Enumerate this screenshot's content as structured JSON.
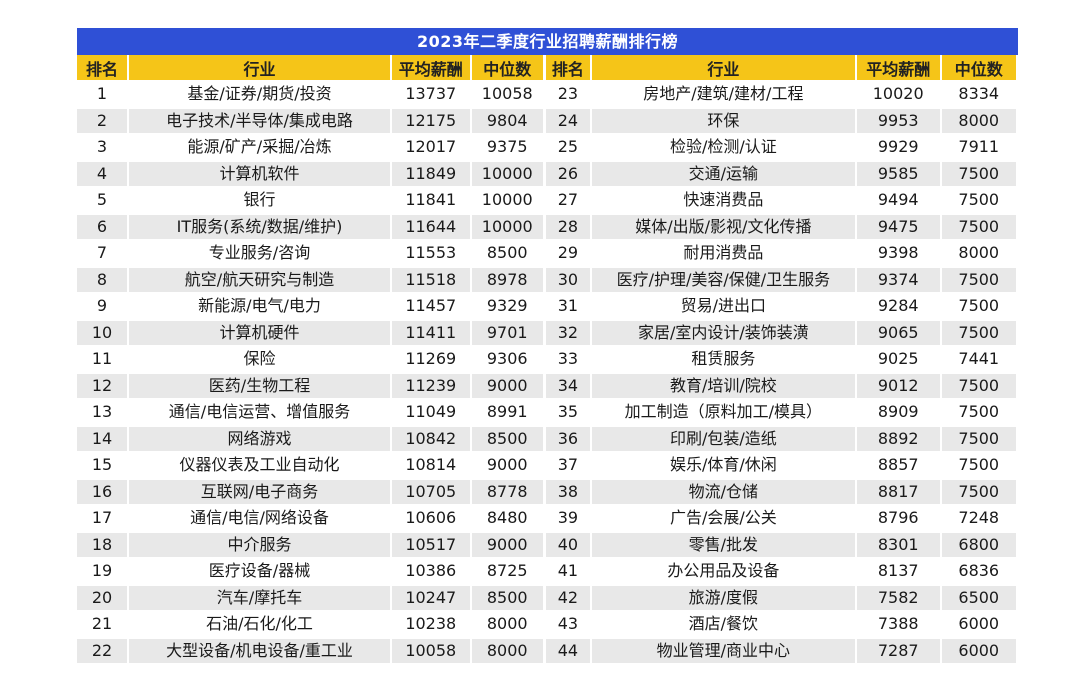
{
  "title": "2023年二季度行业招聘薪酬排行榜",
  "headers": {
    "rank": "排名",
    "industry": "行业",
    "avg": "平均薪酬",
    "median": "中位数"
  },
  "rows": [
    {
      "l": {
        "rank": "1",
        "industry": "基金/证券/期货/投资",
        "avg": "13737",
        "median": "10058"
      },
      "r": {
        "rank": "23",
        "industry": "房地产/建筑/建材/工程",
        "avg": "10020",
        "median": "8334"
      }
    },
    {
      "l": {
        "rank": "2",
        "industry": "电子技术/半导体/集成电路",
        "avg": "12175",
        "median": "9804"
      },
      "r": {
        "rank": "24",
        "industry": "环保",
        "avg": "9953",
        "median": "8000"
      }
    },
    {
      "l": {
        "rank": "3",
        "industry": "能源/矿产/采掘/冶炼",
        "avg": "12017",
        "median": "9375"
      },
      "r": {
        "rank": "25",
        "industry": "检验/检测/认证",
        "avg": "9929",
        "median": "7911"
      }
    },
    {
      "l": {
        "rank": "4",
        "industry": "计算机软件",
        "avg": "11849",
        "median": "10000"
      },
      "r": {
        "rank": "26",
        "industry": "交通/运输",
        "avg": "9585",
        "median": "7500"
      }
    },
    {
      "l": {
        "rank": "5",
        "industry": "银行",
        "avg": "11841",
        "median": "10000"
      },
      "r": {
        "rank": "27",
        "industry": "快速消费品",
        "avg": "9494",
        "median": "7500"
      }
    },
    {
      "l": {
        "rank": "6",
        "industry": "IT服务(系统/数据/维护)",
        "avg": "11644",
        "median": "10000"
      },
      "r": {
        "rank": "28",
        "industry": "媒体/出版/影视/文化传播",
        "avg": "9475",
        "median": "7500"
      }
    },
    {
      "l": {
        "rank": "7",
        "industry": "专业服务/咨询",
        "avg": "11553",
        "median": "8500"
      },
      "r": {
        "rank": "29",
        "industry": "耐用消费品",
        "avg": "9398",
        "median": "8000"
      }
    },
    {
      "l": {
        "rank": "8",
        "industry": "航空/航天研究与制造",
        "avg": "11518",
        "median": "8978"
      },
      "r": {
        "rank": "30",
        "industry": "医疗/护理/美容/保健/卫生服务",
        "avg": "9374",
        "median": "7500"
      }
    },
    {
      "l": {
        "rank": "9",
        "industry": "新能源/电气/电力",
        "avg": "11457",
        "median": "9329"
      },
      "r": {
        "rank": "31",
        "industry": "贸易/进出口",
        "avg": "9284",
        "median": "7500"
      }
    },
    {
      "l": {
        "rank": "10",
        "industry": "计算机硬件",
        "avg": "11411",
        "median": "9701"
      },
      "r": {
        "rank": "32",
        "industry": "家居/室内设计/装饰装潢",
        "avg": "9065",
        "median": "7500"
      }
    },
    {
      "l": {
        "rank": "11",
        "industry": "保险",
        "avg": "11269",
        "median": "9306"
      },
      "r": {
        "rank": "33",
        "industry": "租赁服务",
        "avg": "9025",
        "median": "7441"
      }
    },
    {
      "l": {
        "rank": "12",
        "industry": "医药/生物工程",
        "avg": "11239",
        "median": "9000"
      },
      "r": {
        "rank": "34",
        "industry": "教育/培训/院校",
        "avg": "9012",
        "median": "7500"
      }
    },
    {
      "l": {
        "rank": "13",
        "industry": "通信/电信运营、增值服务",
        "avg": "11049",
        "median": "8991"
      },
      "r": {
        "rank": "35",
        "industry": "加工制造（原料加工/模具）",
        "avg": "8909",
        "median": "7500"
      }
    },
    {
      "l": {
        "rank": "14",
        "industry": "网络游戏",
        "avg": "10842",
        "median": "8500"
      },
      "r": {
        "rank": "36",
        "industry": "印刷/包装/造纸",
        "avg": "8892",
        "median": "7500"
      }
    },
    {
      "l": {
        "rank": "15",
        "industry": "仪器仪表及工业自动化",
        "avg": "10814",
        "median": "9000"
      },
      "r": {
        "rank": "37",
        "industry": "娱乐/体育/休闲",
        "avg": "8857",
        "median": "7500"
      }
    },
    {
      "l": {
        "rank": "16",
        "industry": "互联网/电子商务",
        "avg": "10705",
        "median": "8778"
      },
      "r": {
        "rank": "38",
        "industry": "物流/仓储",
        "avg": "8817",
        "median": "7500"
      }
    },
    {
      "l": {
        "rank": "17",
        "industry": "通信/电信/网络设备",
        "avg": "10606",
        "median": "8480"
      },
      "r": {
        "rank": "39",
        "industry": "广告/会展/公关",
        "avg": "8796",
        "median": "7248"
      }
    },
    {
      "l": {
        "rank": "18",
        "industry": "中介服务",
        "avg": "10517",
        "median": "9000"
      },
      "r": {
        "rank": "40",
        "industry": "零售/批发",
        "avg": "8301",
        "median": "6800"
      }
    },
    {
      "l": {
        "rank": "19",
        "industry": "医疗设备/器械",
        "avg": "10386",
        "median": "8725"
      },
      "r": {
        "rank": "41",
        "industry": "办公用品及设备",
        "avg": "8137",
        "median": "6836"
      }
    },
    {
      "l": {
        "rank": "20",
        "industry": "汽车/摩托车",
        "avg": "10247",
        "median": "8500"
      },
      "r": {
        "rank": "42",
        "industry": "旅游/度假",
        "avg": "7582",
        "median": "6500"
      }
    },
    {
      "l": {
        "rank": "21",
        "industry": "石油/石化/化工",
        "avg": "10238",
        "median": "8000"
      },
      "r": {
        "rank": "43",
        "industry": "酒店/餐饮",
        "avg": "7388",
        "median": "6000"
      }
    },
    {
      "l": {
        "rank": "22",
        "industry": "大型设备/机电设备/重工业",
        "avg": "10058",
        "median": "8000"
      },
      "r": {
        "rank": "44",
        "industry": "物业管理/商业中心",
        "avg": "7287",
        "median": "6000"
      }
    }
  ]
}
